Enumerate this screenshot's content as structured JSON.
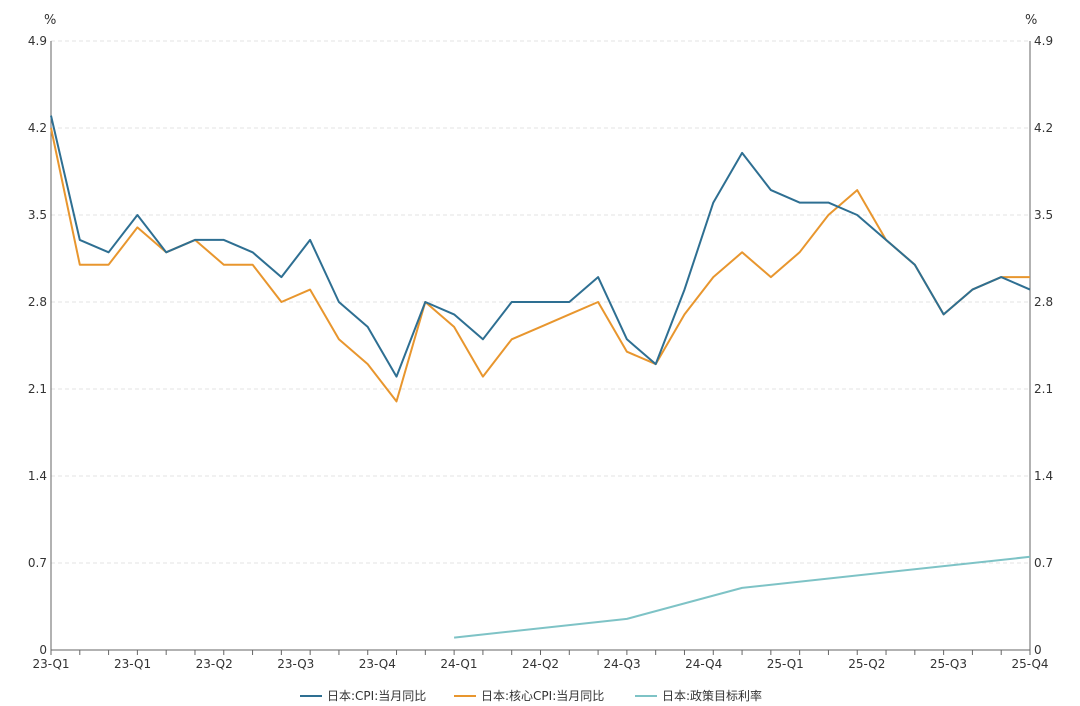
{
  "chart_data": {
    "type": "line",
    "left_unit": "%",
    "right_unit": "%",
    "ylim": [
      0,
      4.9
    ],
    "y_ticks": [
      "0",
      "0.7",
      "1.4",
      "2.1",
      "2.8",
      "3.5",
      "4.2",
      "4.9"
    ],
    "y_tick_values": [
      0,
      0.7,
      1.4,
      2.1,
      2.8,
      3.5,
      4.2,
      4.9
    ],
    "x_labels": [
      "23-Q1",
      "23-Q1",
      "23-Q2",
      "23-Q3",
      "23-Q4",
      "24-Q1",
      "24-Q2",
      "24-Q3",
      "24-Q4",
      "25-Q1",
      "25-Q2",
      "25-Q3",
      "25-Q4"
    ],
    "grid": true,
    "legend_position": "bottom",
    "series": [
      {
        "name": "日本:CPI:当月同比",
        "color": "#2e6f92",
        "values": [
          4.3,
          3.3,
          3.2,
          3.5,
          3.2,
          3.3,
          3.3,
          3.2,
          3.0,
          3.3,
          2.8,
          2.6,
          2.2,
          2.8,
          2.7,
          2.5,
          2.8,
          2.8,
          2.8,
          3.0,
          2.5,
          2.3,
          2.9,
          3.6,
          4.0,
          3.7,
          3.6,
          3.6,
          3.5,
          3.3,
          3.1,
          2.7,
          2.9,
          3.0,
          2.9
        ]
      },
      {
        "name": "日本:核心CPI:当月同比",
        "color": "#e8962e",
        "values": [
          4.2,
          3.1,
          3.1,
          3.4,
          3.2,
          3.3,
          3.1,
          3.1,
          2.8,
          2.9,
          2.5,
          2.3,
          2.0,
          2.8,
          2.6,
          2.2,
          2.5,
          2.6,
          2.7,
          2.8,
          2.4,
          2.3,
          2.7,
          3.0,
          3.2,
          3.0,
          3.2,
          3.5,
          3.7,
          3.3,
          3.1,
          2.7,
          2.9,
          3.0,
          3.0
        ]
      },
      {
        "name": "日本:政策目标利率",
        "color": "#7ec3c6",
        "values": [
          null,
          null,
          null,
          null,
          null,
          null,
          null,
          null,
          null,
          null,
          null,
          null,
          null,
          null,
          0.1,
          null,
          null,
          null,
          null,
          null,
          0.25,
          null,
          null,
          null,
          0.5,
          null,
          null,
          null,
          null,
          null,
          null,
          null,
          null,
          null,
          0.75
        ]
      }
    ]
  }
}
